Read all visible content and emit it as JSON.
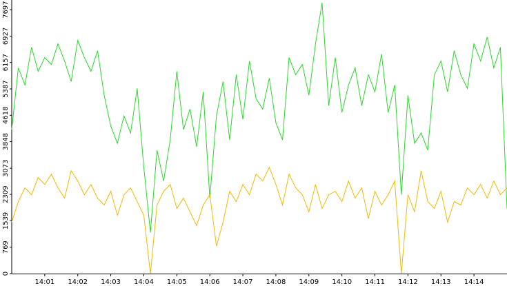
{
  "chart_data": {
    "type": "line",
    "x": [
      0,
      0.2,
      0.4,
      0.6,
      0.8,
      1.0,
      1.2,
      1.4,
      1.6,
      1.8,
      2.0,
      2.2,
      2.4,
      2.6,
      2.8,
      3.0,
      3.2,
      3.4,
      3.6,
      3.8,
      4.0,
      4.2,
      4.4,
      4.6,
      4.8,
      5.0,
      5.2,
      5.4,
      5.6,
      5.8,
      6.0,
      6.2,
      6.4,
      6.6,
      6.8,
      7.0,
      7.2,
      7.4,
      7.6,
      7.8,
      8.0,
      8.2,
      8.4,
      8.6,
      8.8,
      9.0,
      9.2,
      9.4,
      9.6,
      9.8,
      10.0,
      10.2,
      10.4,
      10.6,
      10.8,
      11.0,
      11.2,
      11.4,
      11.6,
      11.8,
      12.0,
      12.2,
      12.4,
      12.6,
      12.8,
      13.0,
      13.2,
      13.4,
      13.6,
      13.8,
      14.0,
      14.2,
      14.4,
      14.6,
      14.8,
      15.0
    ],
    "series": [
      {
        "color": "#22dd22",
        "values": [
          4200,
          6000,
          5500,
          6600,
          5900,
          6300,
          6100,
          6700,
          6200,
          5600,
          6800,
          6300,
          5900,
          6500,
          5200,
          4300,
          3800,
          4600,
          4100,
          5400,
          3100,
          1200,
          3600,
          2700,
          3900,
          5900,
          4200,
          4800,
          3700,
          5300,
          2200,
          4600,
          5600,
          3900,
          5800,
          4500,
          6200,
          5100,
          4800,
          5700,
          4400,
          3900,
          6300,
          5800,
          6100,
          5200,
          6700,
          7900,
          4900,
          6300,
          4700,
          5500,
          6000,
          4900,
          5800,
          5300,
          6400,
          4700,
          5500,
          2300,
          5200,
          3800,
          4100,
          3600,
          5800,
          6200,
          5300,
          6500,
          5800,
          5400,
          6700,
          6200,
          6900,
          6000,
          6600,
          1900
        ]
      },
      {
        "color": "#f5b800",
        "values": [
          1500,
          2100,
          2500,
          2300,
          2800,
          2600,
          2900,
          2500,
          2200,
          3000,
          2700,
          2300,
          2600,
          2200,
          2000,
          2400,
          1700,
          2300,
          2500,
          2100,
          1700,
          0,
          2000,
          2400,
          2600,
          1900,
          2200,
          1800,
          1400,
          2000,
          2300,
          800,
          1500,
          2400,
          2100,
          2600,
          2300,
          2900,
          2700,
          3100,
          2600,
          2000,
          2900,
          2500,
          2300,
          1800,
          2600,
          1900,
          2300,
          2400,
          2100,
          2700,
          2200,
          2500,
          1600,
          2400,
          2000,
          2300,
          2700,
          0,
          2300,
          1800,
          3000,
          2100,
          1900,
          2400,
          1500,
          2100,
          2000,
          2500,
          2300,
          2600,
          2200,
          2700,
          2300,
          2500
        ]
      }
    ],
    "xlim": [
      0,
      15
    ],
    "xticks": [
      {
        "value": 1,
        "label": "14:01"
      },
      {
        "value": 2,
        "label": "14:02"
      },
      {
        "value": 3,
        "label": "14:03"
      },
      {
        "value": 4,
        "label": "14:04"
      },
      {
        "value": 5,
        "label": "14:05"
      },
      {
        "value": 6,
        "label": "14:06"
      },
      {
        "value": 7,
        "label": "14:07"
      },
      {
        "value": 8,
        "label": "14:08"
      },
      {
        "value": 9,
        "label": "14:09"
      },
      {
        "value": 10,
        "label": "14:10"
      },
      {
        "value": 11,
        "label": "14:11"
      },
      {
        "value": 12,
        "label": "14:12"
      },
      {
        "value": 13,
        "label": "14:13"
      },
      {
        "value": 14,
        "label": "14:14"
      }
    ],
    "ylim": [
      0,
      7980
    ],
    "yticks": [
      0,
      769,
      1539,
      2309,
      3073,
      3848,
      4618,
      5387,
      6157,
      6927,
      7697
    ]
  }
}
